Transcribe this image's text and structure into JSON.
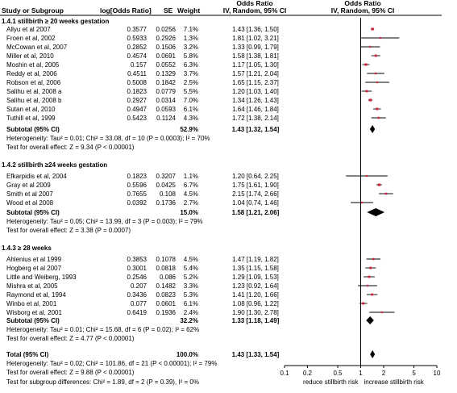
{
  "header": {
    "study": "Study or Subgroup",
    "log_or": "log[Odds Ratio]",
    "se": "SE",
    "weight": "Weight",
    "or_left_title": "Odds Ratio",
    "or_left_sub": "IV, Random, 95% CI",
    "or_right_title": "Odds Ratio",
    "or_right_sub": "IV, Random, 95% CI"
  },
  "chart_data": {
    "type": "forest",
    "x_scale": "log",
    "xlim": [
      0.1,
      10
    ],
    "x_ticks": [
      "0.1",
      "0.2",
      "0.5",
      "1",
      "2",
      "5",
      "10"
    ],
    "x_tick_values": [
      0.1,
      0.2,
      0.5,
      1,
      2,
      5,
      10
    ],
    "favours_left": "reduce stillbirth risk",
    "favours_right": "increase stillbirth risk",
    "colors": {
      "study_marker": "#d2233c",
      "diamond": "#000000",
      "line": "#000000"
    },
    "subgroups": [
      {
        "title": "1.4.1 stillbirth ≥ 20 weeks gestation",
        "studies": [
          {
            "name": "Allyu et al 2007",
            "log_or": "0.3577",
            "se": "0.0256",
            "weight": "7.1%",
            "ci_text": "1.43 [1.36, 1.50]",
            "or": 1.43,
            "lo": 1.36,
            "hi": 1.5,
            "w": 7.1
          },
          {
            "name": "Froen et al, 2002",
            "log_or": "0.5933",
            "se": "0.2926",
            "weight": "1.3%",
            "ci_text": "1.81 [1.02, 3.21]",
            "or": 1.81,
            "lo": 1.02,
            "hi": 3.21,
            "w": 1.3
          },
          {
            "name": "McCowan et al, 2007",
            "log_or": "0.2852",
            "se": "0.1506",
            "weight": "3.2%",
            "ci_text": "1.33 [0.99, 1.79]",
            "or": 1.33,
            "lo": 0.99,
            "hi": 1.79,
            "w": 3.2
          },
          {
            "name": "Miller et al, 2010",
            "log_or": "0.4574",
            "se": "0.0691",
            "weight": "5.8%",
            "ci_text": "1.58 [1.38, 1.81]",
            "or": 1.58,
            "lo": 1.38,
            "hi": 1.81,
            "w": 5.8
          },
          {
            "name": "Moshin et al, 2005",
            "log_or": "0.157",
            "se": "0.0552",
            "weight": "6.3%",
            "ci_text": "1.17 [1.05, 1.30]",
            "or": 1.17,
            "lo": 1.05,
            "hi": 1.3,
            "w": 6.3
          },
          {
            "name": "Reddy et al, 2006",
            "log_or": "0.4511",
            "se": "0.1329",
            "weight": "3.7%",
            "ci_text": "1.57 [1.21, 2.04]",
            "or": 1.57,
            "lo": 1.21,
            "hi": 2.04,
            "w": 3.7
          },
          {
            "name": "Robson et al, 2006",
            "log_or": "0.5008",
            "se": "0.1842",
            "weight": "2.5%",
            "ci_text": "1.65 [1.15, 2.37]",
            "or": 1.65,
            "lo": 1.15,
            "hi": 2.37,
            "w": 2.5
          },
          {
            "name": "Salihu et al, 2008 a",
            "log_or": "0.1823",
            "se": "0.0779",
            "weight": "5.5%",
            "ci_text": "1.20 [1.03, 1.40]",
            "or": 1.2,
            "lo": 1.03,
            "hi": 1.4,
            "w": 5.5
          },
          {
            "name": "Salihu et al, 2008 b",
            "log_or": "0.2927",
            "se": "0.0314",
            "weight": "7.0%",
            "ci_text": "1.34 [1.26, 1.43]",
            "or": 1.34,
            "lo": 1.26,
            "hi": 1.43,
            "w": 7.0
          },
          {
            "name": "Sutan et al, 2010",
            "log_or": "0.4947",
            "se": "0.0593",
            "weight": "6.1%",
            "ci_text": "1.64 [1.46, 1.84]",
            "or": 1.64,
            "lo": 1.46,
            "hi": 1.84,
            "w": 6.1
          },
          {
            "name": "Tuthill et al, 1999",
            "log_or": "0.5423",
            "se": "0.1124",
            "weight": "4.3%",
            "ci_text": "1.72 [1.38, 2.14]",
            "or": 1.72,
            "lo": 1.38,
            "hi": 2.14,
            "w": 4.3
          }
        ],
        "subtotal": {
          "label": "Subtotal (95% CI)",
          "weight": "52.9%",
          "ci_text": "1.43 [1.32, 1.54]",
          "or": 1.43,
          "lo": 1.32,
          "hi": 1.54
        },
        "heterogeneity": "Heterogeneity: Tau² = 0.01; Chi² = 33.08, df = 10 (P = 0.0003); I² = 70%",
        "overall_effect": "Test for overall effect: Z = 9.34 (P < 0.00001)"
      },
      {
        "title": "1.4.2 stillbirth ≥24 weeks gestation",
        "studies": [
          {
            "name": "Efkarpidis et al, 2004",
            "log_or": "0.1823",
            "se": "0.3207",
            "weight": "1.1%",
            "ci_text": "1.20 [0.64, 2.25]",
            "or": 1.2,
            "lo": 0.64,
            "hi": 2.25,
            "w": 1.1
          },
          {
            "name": "Gray et al 2009",
            "log_or": "0.5596",
            "se": "0.0425",
            "weight": "6.7%",
            "ci_text": "1.75 [1.61, 1.90]",
            "or": 1.75,
            "lo": 1.61,
            "hi": 1.9,
            "w": 6.7
          },
          {
            "name": "Smith et al 2007",
            "log_or": "0.7655",
            "se": "0.108",
            "weight": "4.5%",
            "ci_text": "2.15 [1.74, 2.66]",
            "or": 2.15,
            "lo": 1.74,
            "hi": 2.66,
            "w": 4.5
          },
          {
            "name": "Wood et al 2008",
            "log_or": "0.0392",
            "se": "0.1736",
            "weight": "2.7%",
            "ci_text": "1.04 [0.74, 1.46]",
            "or": 1.04,
            "lo": 0.74,
            "hi": 1.46,
            "w": 2.7
          }
        ],
        "subtotal": {
          "label": "Subtotal (95% CI)",
          "weight": "15.0%",
          "ci_text": "1.58 [1.21, 2.06]",
          "or": 1.58,
          "lo": 1.21,
          "hi": 2.06
        },
        "heterogeneity": "Heterogeneity: Tau² = 0.05; Chi² = 13.99, df = 3 (P = 0.003); I² = 79%",
        "overall_effect": "Test for overall effect: Z = 3.38 (P = 0.0007)"
      },
      {
        "title": "1.4.3 ≥ 28 weeks",
        "studies": [
          {
            "name": "Ahlenius et al 1999",
            "log_or": "0.3853",
            "se": "0.1078",
            "weight": "4.5%",
            "ci_text": "1.47 [1.19, 1.82]",
            "or": 1.47,
            "lo": 1.19,
            "hi": 1.82,
            "w": 4.5
          },
          {
            "name": "Hogberg et al 2007",
            "log_or": "0.3001",
            "se": "0.0818",
            "weight": "5.4%",
            "ci_text": "1.35 [1.15, 1.58]",
            "or": 1.35,
            "lo": 1.15,
            "hi": 1.58,
            "w": 5.4
          },
          {
            "name": "Little and Weiberg, 1993",
            "log_or": "0.2546",
            "se": "0.086",
            "weight": "5.2%",
            "ci_text": "1.29 [1.09, 1.53]",
            "or": 1.29,
            "lo": 1.09,
            "hi": 1.53,
            "w": 5.2
          },
          {
            "name": "Mishra et al, 2005",
            "log_or": "0.207",
            "se": "0.1482",
            "weight": "3.3%",
            "ci_text": "1.23 [0.92, 1.64]",
            "or": 1.23,
            "lo": 0.92,
            "hi": 1.64,
            "w": 3.3
          },
          {
            "name": "Raymond et al, 1994",
            "log_or": "0.3436",
            "se": "0.0823",
            "weight": "5.3%",
            "ci_text": "1.41 [1.20, 1.66]",
            "or": 1.41,
            "lo": 1.2,
            "hi": 1.66,
            "w": 5.3
          },
          {
            "name": "Winbo et al, 2001",
            "log_or": "0.077",
            "se": "0.0601",
            "weight": "6.1%",
            "ci_text": "1.08 [0.96, 1.22]",
            "or": 1.08,
            "lo": 0.96,
            "hi": 1.22,
            "w": 6.1
          },
          {
            "name": "Wisborg et al, 2001",
            "log_or": "0.6419",
            "se": "0.1936",
            "weight": "2.4%",
            "ci_text": "1.90 [1.30, 2.78]",
            "or": 1.9,
            "lo": 1.3,
            "hi": 2.78,
            "w": 2.4
          }
        ],
        "subtotal": {
          "label": "Subtotal (95% CI)",
          "weight": "32.2%",
          "ci_text": "1.33 [1.18, 1.49]",
          "or": 1.33,
          "lo": 1.18,
          "hi": 1.49
        },
        "heterogeneity": "Heterogeneity: Tau² = 0.01; Chi² = 15.68, df = 6 (P = 0.02); I² = 62%",
        "overall_effect": "Test for overall effect: Z = 4.77 (P < 0.00001)"
      }
    ],
    "total": {
      "label": "Total (95% CI)",
      "weight": "100.0%",
      "ci_text": "1.43 [1.33, 1.54]",
      "or": 1.43,
      "lo": 1.33,
      "hi": 1.54,
      "heterogeneity": "Heterogeneity: Tau² = 0.02; Chi² = 101.86, df = 21 (P < 0.00001); I² = 79%",
      "overall_effect": "Test for overall effect: Z = 9.88 (P < 0.00001)",
      "subgroup_differences": "Test for subgroup differences: Chi² = 1.89, df = 2 (P = 0.39), I² = 0%"
    }
  }
}
